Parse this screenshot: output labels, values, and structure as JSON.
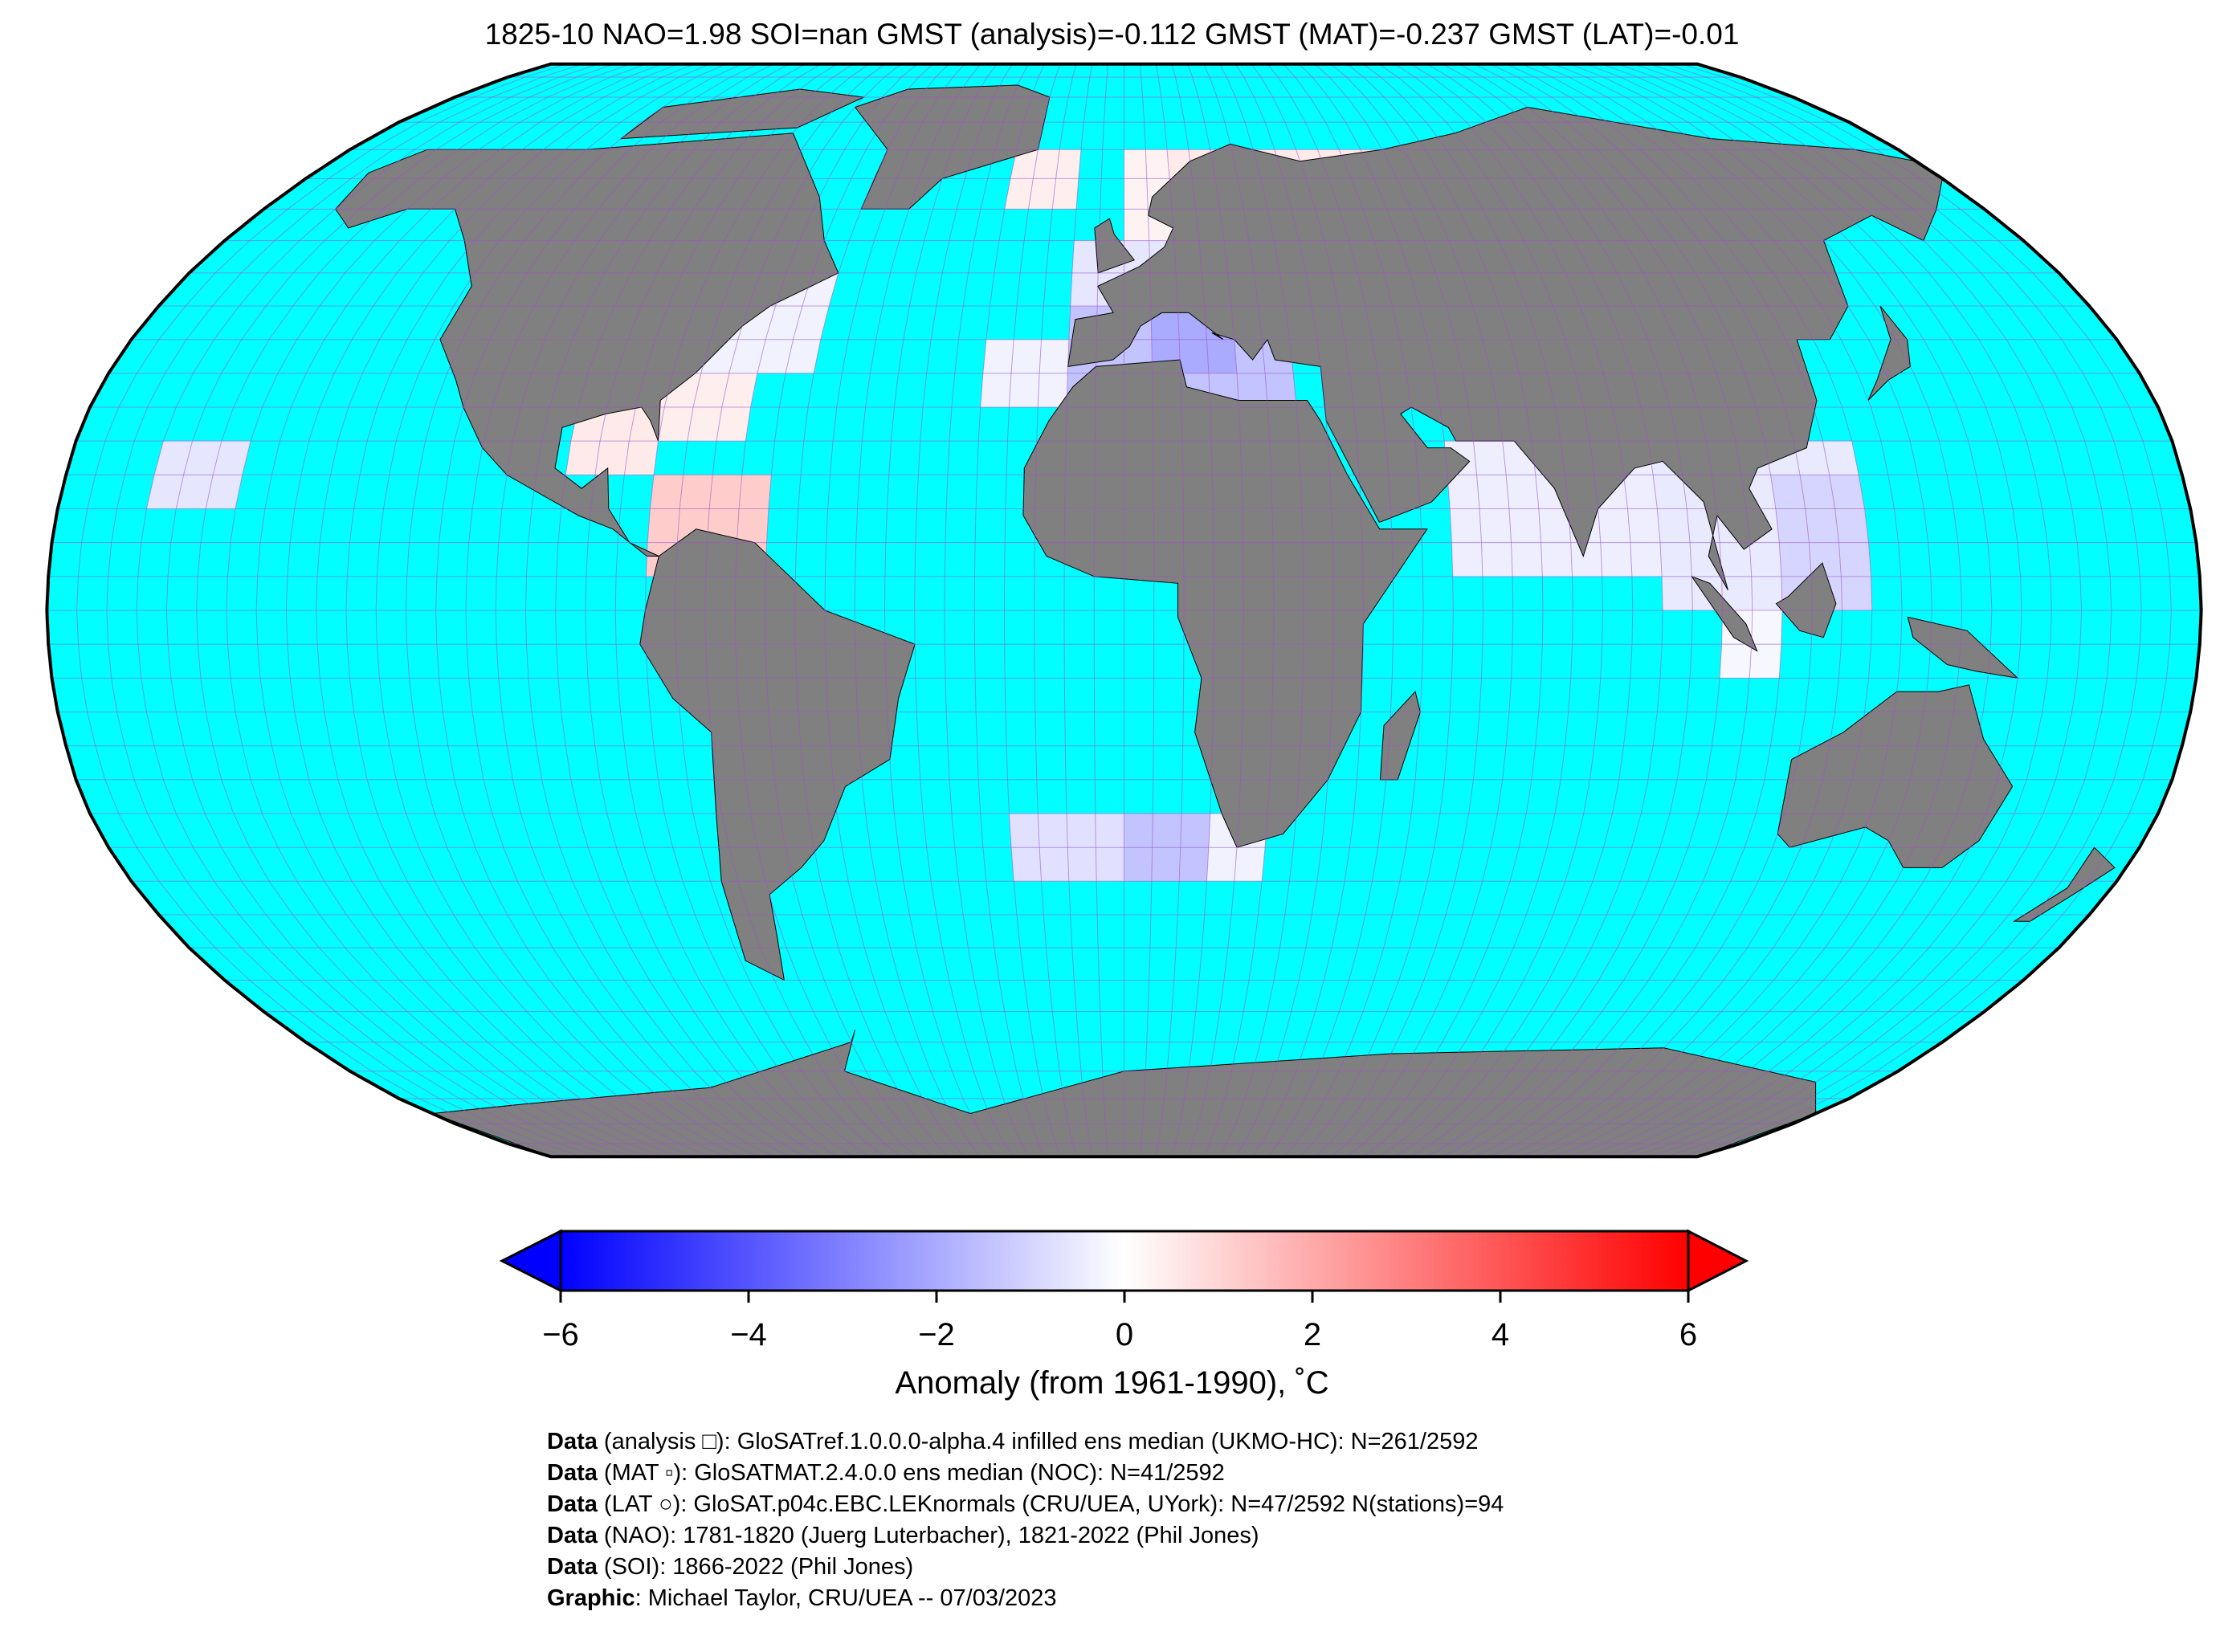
{
  "title": "1825-10 NAO=1.98 SOI=nan GMST (analysis)=-0.112 GMST (MAT)=-0.237 GMST (LAT)=-0.01",
  "map": {
    "projection": "Robinson",
    "ocean_color": "#00ffff",
    "land_color": "#808080",
    "grid_color": "#a050c8",
    "grid_spacing_deg": 5,
    "cells": [
      {
        "region": "northern-europe-russia",
        "lon": [
          10,
          80
        ],
        "lat": [
          55,
          70
        ],
        "value": 0.5
      },
      {
        "region": "scandinavia",
        "lon": [
          0,
          10
        ],
        "lat": [
          55,
          70
        ],
        "value": 0.3
      },
      {
        "region": "iceland-north-atlantic",
        "lon": [
          -25,
          -10
        ],
        "lat": [
          60,
          70
        ],
        "value": 0.4
      },
      {
        "region": "central-europe",
        "lon": [
          -10,
          30
        ],
        "lat": [
          45,
          55
        ],
        "value": -0.6
      },
      {
        "region": "eastern-europe",
        "lon": [
          30,
          50
        ],
        "lat": [
          40,
          55
        ],
        "value": -0.3
      },
      {
        "region": "mediterranean",
        "lon": [
          -10,
          30
        ],
        "lat": [
          30,
          45
        ],
        "value": -1.4
      },
      {
        "region": "central-mediterranean",
        "lon": [
          5,
          20
        ],
        "lat": [
          35,
          45
        ],
        "value": -2.0
      },
      {
        "region": "atlantic-azores",
        "lon": [
          -25,
          -10
        ],
        "lat": [
          30,
          40
        ],
        "value": -0.3
      },
      {
        "region": "north-africa-cell",
        "lon": [
          5,
          10
        ],
        "lat": [
          25,
          30
        ],
        "value": -1.0
      },
      {
        "region": "nw-atlantic",
        "lon": [
          -80,
          -55
        ],
        "lat": [
          35,
          50
        ],
        "value": -0.3
      },
      {
        "region": "us-east-coast",
        "lon": [
          -85,
          -65
        ],
        "lat": [
          25,
          35
        ],
        "value": 0.4
      },
      {
        "region": "gulf-of-mexico",
        "lon": [
          -95,
          -80
        ],
        "lat": [
          20,
          30
        ],
        "value": 0.5
      },
      {
        "region": "caribbean",
        "lon": [
          -80,
          -60
        ],
        "lat": [
          5,
          20
        ],
        "value": 1.2
      },
      {
        "region": "hawaii",
        "lon": [
          -165,
          -150
        ],
        "lat": [
          15,
          25
        ],
        "value": -0.6
      },
      {
        "region": "arabian-sea-india",
        "lon": [
          55,
          90
        ],
        "lat": [
          5,
          25
        ],
        "value": -0.4
      },
      {
        "region": "bay-of-bengal-se-asia",
        "lon": [
          90,
          125
        ],
        "lat": [
          0,
          25
        ],
        "value": -0.5
      },
      {
        "region": "south-china-sea",
        "lon": [
          110,
          125
        ],
        "lat": [
          0,
          20
        ],
        "value": -1.0
      },
      {
        "region": "indonesia",
        "lon": [
          100,
          110
        ],
        "lat": [
          -10,
          0
        ],
        "value": -0.2
      },
      {
        "region": "south-atlantic-west",
        "lon": [
          -20,
          0
        ],
        "lat": [
          -40,
          -30
        ],
        "value": -0.7
      },
      {
        "region": "south-atlantic-central",
        "lon": [
          0,
          15
        ],
        "lat": [
          -40,
          -30
        ],
        "value": -1.4
      },
      {
        "region": "cape",
        "lon": [
          15,
          25
        ],
        "lat": [
          -40,
          -30
        ],
        "value": -0.3
      }
    ]
  },
  "colorbar": {
    "cmap": "bwr",
    "vmin": -6,
    "vmax": 6,
    "extend": "both",
    "ticks": [
      "−6",
      "−4",
      "−2",
      "0",
      "2",
      "4",
      "6"
    ],
    "tick_values": [
      -6,
      -4,
      -2,
      0,
      2,
      4,
      6
    ],
    "label": "Anomaly (from 1961-1990), ˚C",
    "color_min": "#0000ff",
    "color_mid": "#ffffff",
    "color_max": "#ff0000"
  },
  "footer": [
    {
      "bold": "Data",
      "text": " (analysis □): GloSATref.1.0.0.0-alpha.4 infilled ens median (UKMO-HC): N=261/2592"
    },
    {
      "bold": "Data",
      "text": " (MAT ▫): GloSATMAT.2.4.0.0 ens median (NOC): N=41/2592"
    },
    {
      "bold": "Data",
      "text": " (LAT ○): GloSAT.p04c.EBC.LEKnormals (CRU/UEA, UYork): N=47/2592 N(stations)=94"
    },
    {
      "bold": "Data",
      "text": " (NAO): 1781-1820 (Juerg Luterbacher), 1821-2022 (Phil Jones)"
    },
    {
      "bold": "Data",
      "text": " (SOI): 1866-2022 (Phil Jones)"
    },
    {
      "bold": "Graphic",
      "text": ": Michael Taylor, CRU/UEA -- 07/03/2023"
    }
  ]
}
